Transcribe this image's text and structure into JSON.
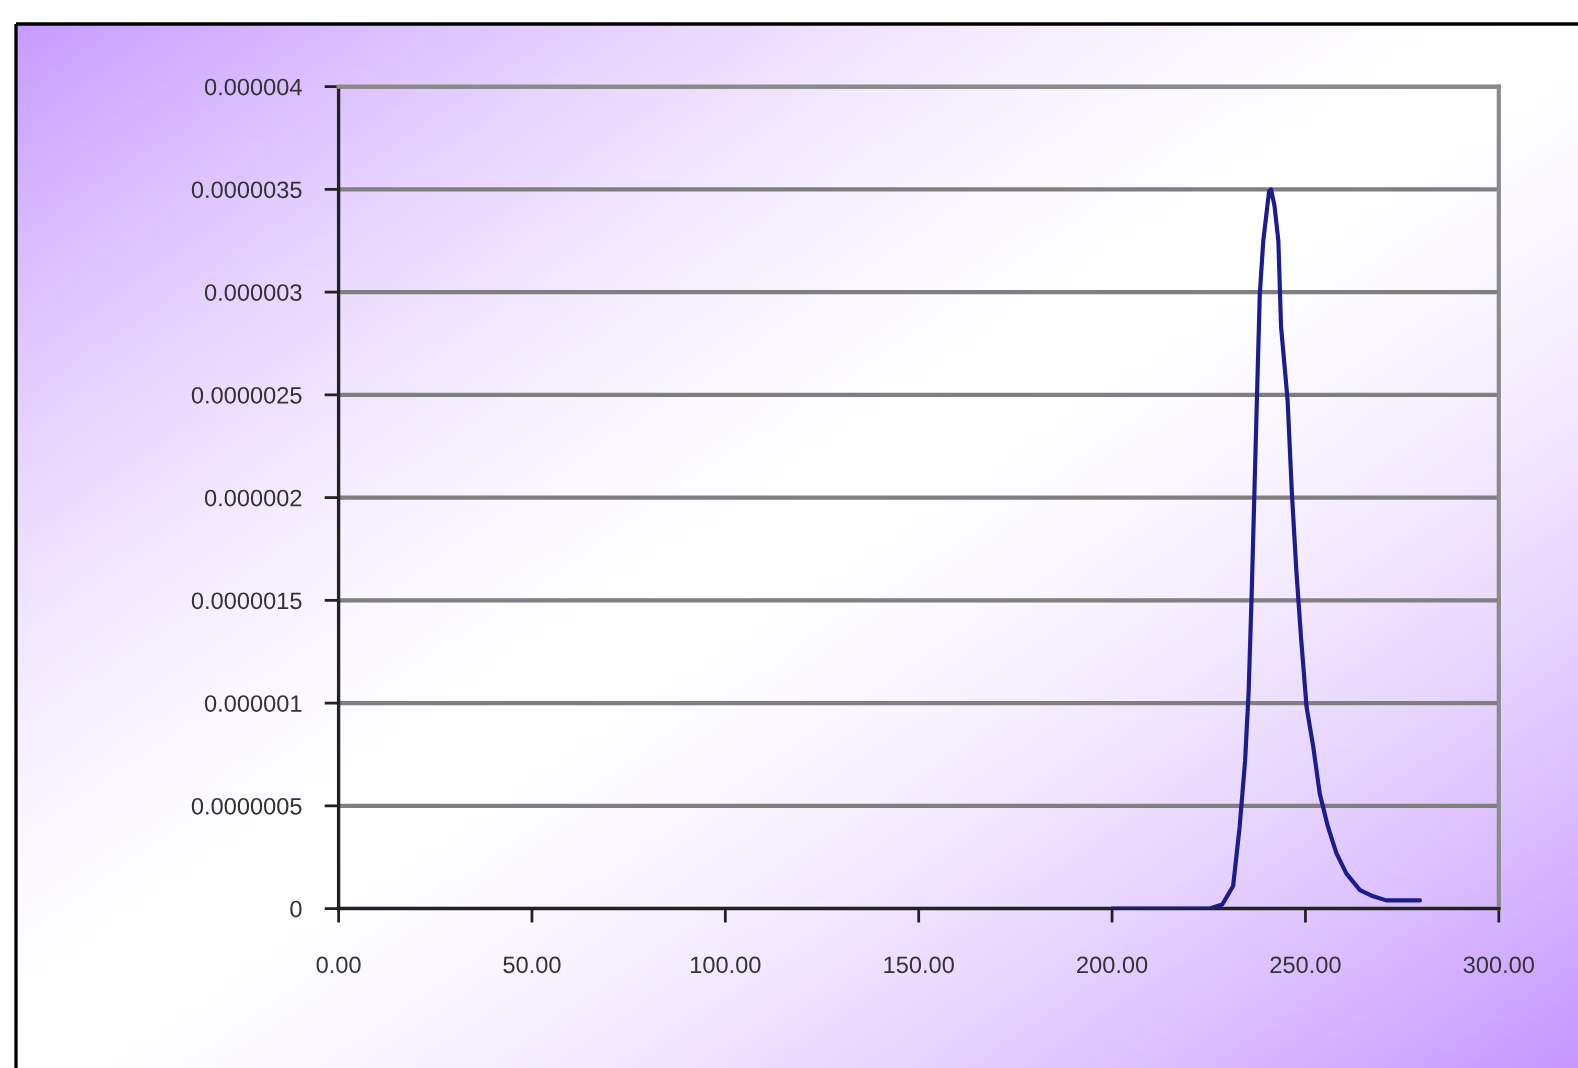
{
  "chart_data": {
    "type": "line",
    "x": [
      200.0,
      225.3,
      228.5,
      231.3,
      233.0,
      234.4,
      235.3,
      236.1,
      236.8,
      237.5,
      238.2,
      239.1,
      240.6,
      241.1,
      242.0,
      243.0,
      243.7,
      244.8,
      245.4,
      246.5,
      247.7,
      248.9,
      250.3,
      252.0,
      253.7,
      255.8,
      258.0,
      260.6,
      264.1,
      267.5,
      270.9,
      279.6
    ],
    "values": [
      0,
      0,
      2e-08,
      1.1e-07,
      4e-07,
      7.2e-07,
      1.05e-06,
      1.53e-06,
      2.02e-06,
      2.51e-06,
      2.99e-06,
      3.25e-06,
      3.49e-06,
      3.5e-06,
      3.42e-06,
      3.25e-06,
      2.83e-06,
      2.6e-06,
      2.47e-06,
      2.02e-06,
      1.63e-06,
      1.31e-06,
      9.8e-07,
      7.9e-07,
      5.6e-07,
      4e-07,
      2.7e-07,
      1.7e-07,
      9e-08,
      6e-08,
      4e-08,
      4e-08
    ],
    "color": "#1c1c8c",
    "xlim": [
      0,
      300
    ],
    "xticks": [
      {
        "value": 0,
        "label": "0.00"
      },
      {
        "value": 50,
        "label": "50.00"
      },
      {
        "value": 100,
        "label": "100.00"
      },
      {
        "value": 150,
        "label": "150.00"
      },
      {
        "value": 200,
        "label": "200.00"
      },
      {
        "value": 250,
        "label": "250.00"
      },
      {
        "value": 300,
        "label": "300.00"
      }
    ],
    "ylim": [
      0,
      4e-06
    ],
    "yticks": [
      {
        "value": 0,
        "label": "0"
      },
      {
        "value": 5e-07,
        "label": "0.0000005"
      },
      {
        "value": 1e-06,
        "label": "0.000001"
      },
      {
        "value": 1.5e-06,
        "label": "0.0000015"
      },
      {
        "value": 2e-06,
        "label": "0.000002"
      },
      {
        "value": 2.5e-06,
        "label": "0.0000025"
      },
      {
        "value": 3e-06,
        "label": "0.000003"
      },
      {
        "value": 3.5e-06,
        "label": "0.0000035"
      },
      {
        "value": 4e-06,
        "label": "0.000004"
      }
    ],
    "grid": "y"
  }
}
